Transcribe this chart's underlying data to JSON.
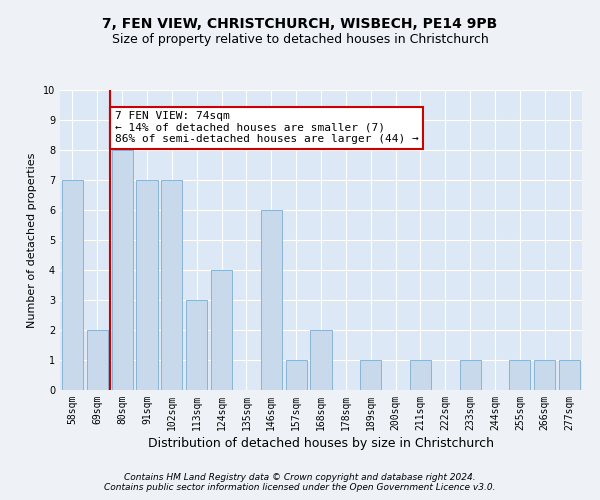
{
  "title": "7, FEN VIEW, CHRISTCHURCH, WISBECH, PE14 9PB",
  "subtitle": "Size of property relative to detached houses in Christchurch",
  "xlabel": "Distribution of detached houses by size in Christchurch",
  "ylabel": "Number of detached properties",
  "categories": [
    "58sqm",
    "69sqm",
    "80sqm",
    "91sqm",
    "102sqm",
    "113sqm",
    "124sqm",
    "135sqm",
    "146sqm",
    "157sqm",
    "168sqm",
    "178sqm",
    "189sqm",
    "200sqm",
    "211sqm",
    "222sqm",
    "233sqm",
    "244sqm",
    "255sqm",
    "266sqm",
    "277sqm"
  ],
  "values": [
    7,
    2,
    8,
    7,
    7,
    3,
    4,
    0,
    6,
    1,
    2,
    0,
    1,
    0,
    1,
    0,
    1,
    0,
    1,
    1,
    1
  ],
  "bar_color": "#c8d9eb",
  "bar_edgecolor": "#8ab4d4",
  "vline_color": "#cc0000",
  "annotation_text": "7 FEN VIEW: 74sqm\n← 14% of detached houses are smaller (7)\n86% of semi-detached houses are larger (44) →",
  "annotation_box_color": "#ffffff",
  "annotation_box_edgecolor": "#cc0000",
  "ylim": [
    0,
    10
  ],
  "yticks": [
    0,
    1,
    2,
    3,
    4,
    5,
    6,
    7,
    8,
    9,
    10
  ],
  "footer1": "Contains HM Land Registry data © Crown copyright and database right 2024.",
  "footer2": "Contains public sector information licensed under the Open Government Licence v3.0.",
  "bg_color": "#eef2f7",
  "plot_bg_color": "#dce8f5",
  "grid_color": "#ffffff",
  "title_fontsize": 10,
  "subtitle_fontsize": 9,
  "xlabel_fontsize": 9,
  "ylabel_fontsize": 8,
  "tick_fontsize": 7,
  "footer_fontsize": 6.5,
  "annotation_fontsize": 8
}
